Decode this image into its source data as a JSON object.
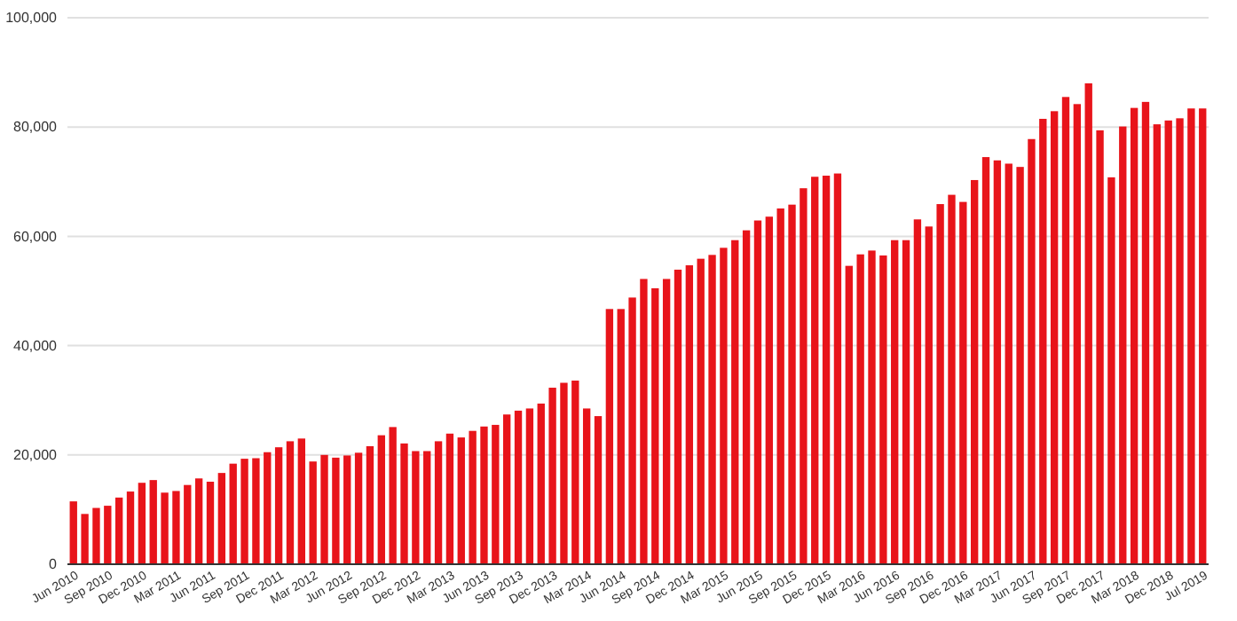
{
  "chart_data": {
    "type": "bar",
    "categories": [
      "Jun 2010",
      null,
      null,
      "Sep 2010",
      null,
      null,
      "Dec 2010",
      null,
      null,
      "Mar 2011",
      null,
      null,
      "Jun 2011",
      null,
      null,
      "Sep 2011",
      null,
      null,
      "Dec 2011",
      null,
      null,
      "Mar 2012",
      null,
      null,
      "Jun 2012",
      null,
      null,
      "Sep 2012",
      null,
      null,
      "Dec 2012",
      null,
      null,
      "Mar 2013",
      null,
      null,
      "Jun 2013",
      null,
      null,
      "Sep 2013",
      null,
      null,
      "Dec 2013",
      null,
      null,
      "Mar 2014",
      null,
      null,
      "Jun 2014",
      null,
      null,
      "Sep 2014",
      null,
      null,
      "Dec 2014",
      null,
      null,
      "Mar 2015",
      null,
      null,
      "Jun 2015",
      null,
      null,
      "Sep 2015",
      null,
      null,
      "Dec 2015",
      null,
      null,
      "Mar 2016",
      null,
      null,
      "Jun 2016",
      null,
      null,
      "Sep 2016",
      null,
      null,
      "Dec 2016",
      null,
      null,
      "Mar 2017",
      null,
      null,
      "Jun 2017",
      null,
      null,
      "Sep 2017",
      null,
      null,
      "Dec 2017",
      null,
      null,
      "Mar 2018",
      null,
      null,
      "Dec 2018",
      null,
      null,
      "Jul 2019"
    ],
    "values": [
      11500,
      9200,
      10300,
      10700,
      12200,
      13300,
      14900,
      15400,
      13100,
      13400,
      14500,
      15700,
      15100,
      16700,
      18400,
      19300,
      19400,
      20500,
      21400,
      22500,
      23000,
      18800,
      20000,
      19500,
      19900,
      20400,
      21600,
      23600,
      25100,
      22100,
      20700,
      20700,
      22500,
      23900,
      23200,
      24400,
      25200,
      25500,
      27400,
      28100,
      28500,
      29400,
      32300,
      33200,
      33600,
      28500,
      27100,
      46700,
      46700,
      48800,
      52200,
      50500,
      52200,
      53900,
      54700,
      55900,
      56600,
      57900,
      59300,
      61100,
      62900,
      63600,
      65100,
      65800,
      68800,
      70900,
      71100,
      71500,
      54600,
      56700,
      57400,
      56500,
      59300,
      59300,
      63100,
      61800,
      65900,
      67600,
      66300,
      70300,
      74500,
      73900,
      73300,
      72700,
      77800,
      81500,
      82900,
      85500,
      84200,
      88000,
      79400,
      70800,
      80100,
      83500,
      84600,
      80500,
      81200,
      81600,
      83400,
      83400
    ],
    "color": "#e8141a",
    "ylim": [
      0,
      100000
    ],
    "yticks": [
      {
        "value": 0,
        "label": "0"
      },
      {
        "value": 20000,
        "label": "20,000"
      },
      {
        "value": 40000,
        "label": "40,000"
      },
      {
        "value": 60000,
        "label": "60,000"
      },
      {
        "value": 80000,
        "label": "80,000"
      },
      {
        "value": 100000,
        "label": "100,000"
      }
    ],
    "grid": "y"
  }
}
